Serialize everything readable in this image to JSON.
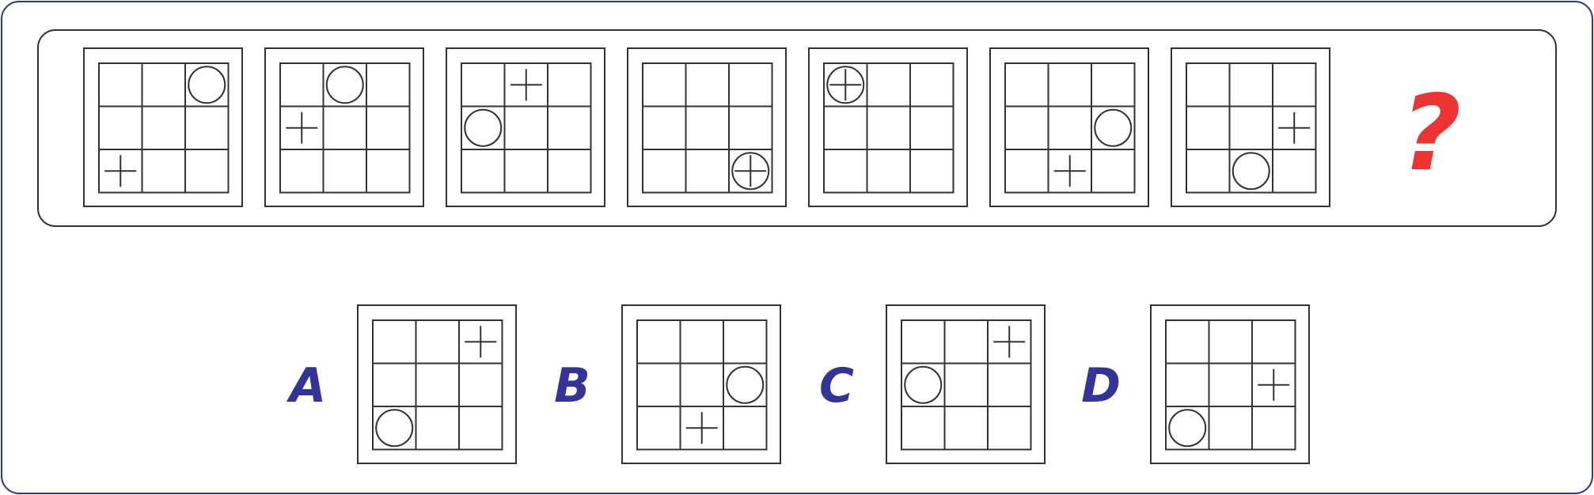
{
  "puzzle": {
    "question_mark": "?",
    "colors": {
      "outer_border": "#33339a",
      "frame": "#333333",
      "question_mark": "#ee3333",
      "option_letter": "#333399"
    },
    "sequence": [
      {
        "circle": [
          0,
          2
        ],
        "cross": [
          2,
          0
        ]
      },
      {
        "circle": [
          0,
          1
        ],
        "cross": [
          1,
          0
        ]
      },
      {
        "circle": [
          1,
          0
        ],
        "cross": [
          0,
          1
        ]
      },
      {
        "circle": [
          2,
          2
        ],
        "cross": [
          2,
          2
        ]
      },
      {
        "circle": [
          0,
          0
        ],
        "cross": [
          0,
          0
        ]
      },
      {
        "circle": [
          1,
          2
        ],
        "cross": [
          2,
          1
        ]
      },
      {
        "circle": [
          2,
          1
        ],
        "cross": [
          1,
          2
        ]
      }
    ],
    "options": [
      {
        "letter": "A",
        "circle": [
          2,
          0
        ],
        "cross": [
          0,
          2
        ]
      },
      {
        "letter": "B",
        "circle": [
          1,
          2
        ],
        "cross": [
          2,
          1
        ]
      },
      {
        "letter": "C",
        "circle": [
          1,
          0
        ],
        "cross": [
          0,
          2
        ]
      },
      {
        "letter": "D",
        "circle": [
          2,
          0
        ],
        "cross": [
          1,
          2
        ]
      }
    ]
  }
}
